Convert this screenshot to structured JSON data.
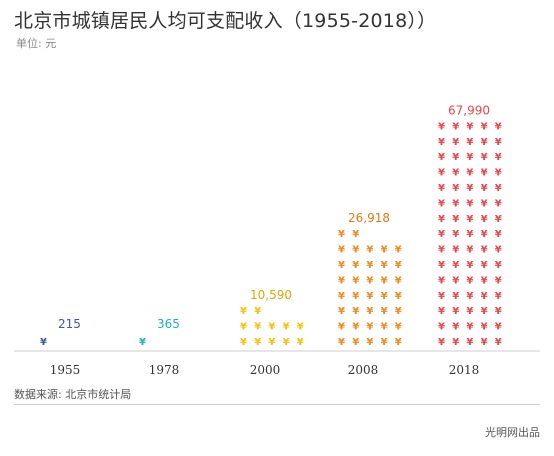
{
  "title": "北京市城镇居民人均可支配收入（1955-2018））",
  "unit": "单位: 元",
  "source": "数据来源: 北京市统计局",
  "credit": "光明网出品",
  "symbol": "¥",
  "chart_data": {
    "type": "bar",
    "title": "北京市城镇居民人均可支配收入（1955-2018））",
    "categories": [
      "1955",
      "1978",
      "2000",
      "2008",
      "2018"
    ],
    "values": [
      215,
      365,
      10590,
      26918,
      67990
    ],
    "value_labels": [
      "215",
      "365",
      "10,590",
      "26,918",
      "67,990"
    ],
    "icon_counts": [
      1,
      1,
      12,
      37,
      75
    ],
    "colors": [
      "#3a5ca8",
      "#1fb3c0",
      "#f2c40f",
      "#f08a1c",
      "#e8474b"
    ],
    "label_colors": [
      "#3a5ca8",
      "#1fb3c0",
      "#e0a800",
      "#e07b12",
      "#e8474b"
    ],
    "grid": false,
    "legend": "none"
  }
}
